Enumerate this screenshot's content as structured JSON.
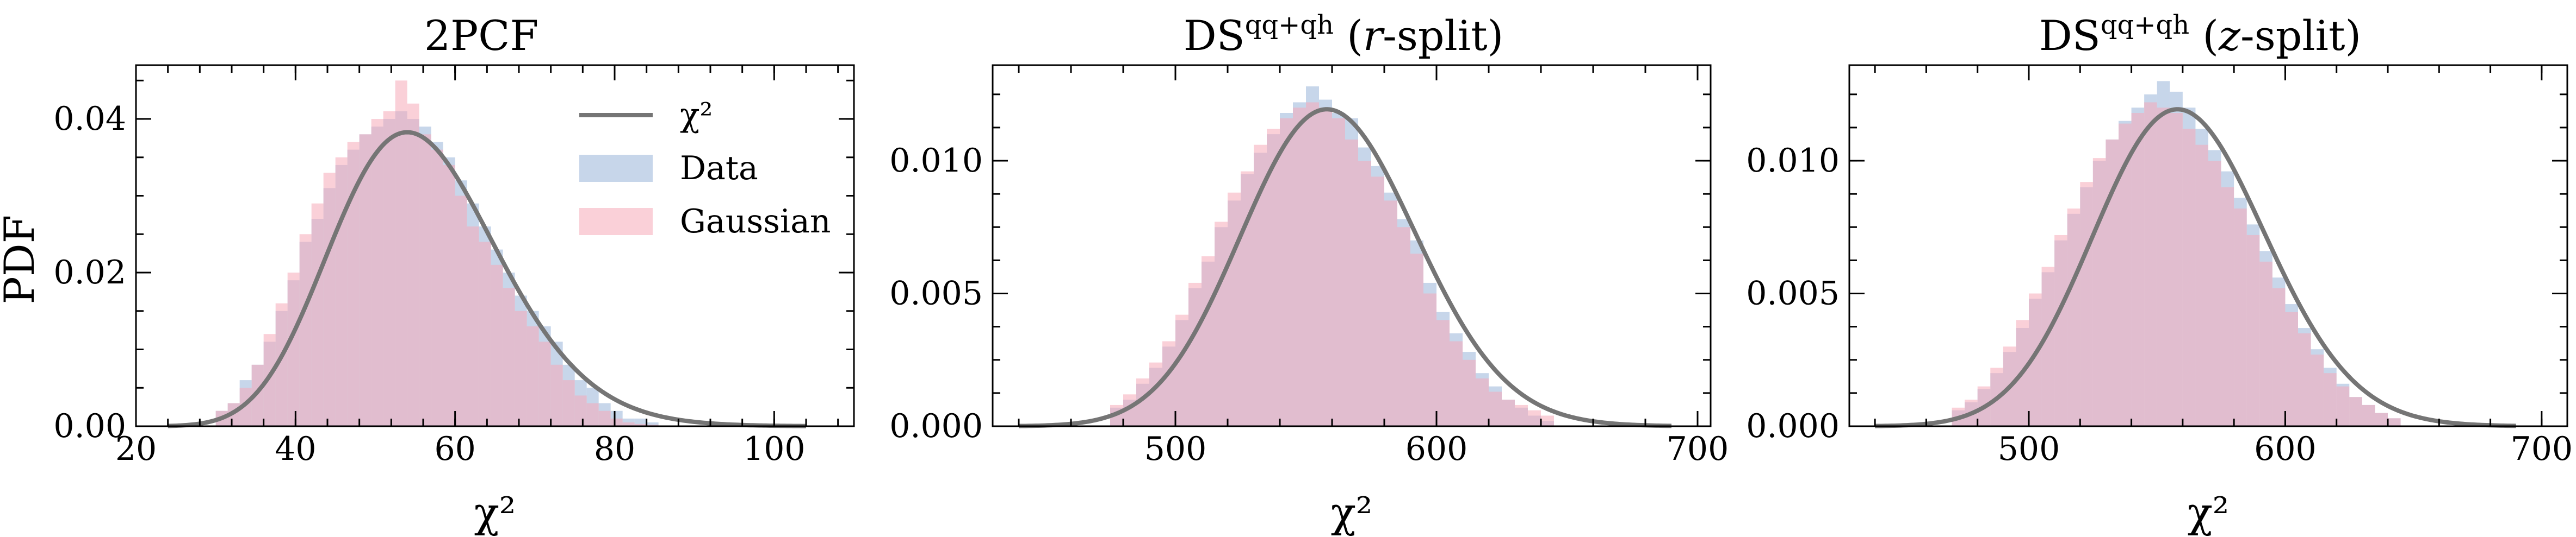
{
  "colors": {
    "data": "#a9c0de",
    "gaussian": "#f5aab8",
    "chi2_line": "#757575"
  },
  "legend": {
    "chi2": "χ²",
    "data": "Data",
    "gaussian": "Gaussian"
  },
  "chart_data": [
    {
      "type": "histogram",
      "title": "2PCF",
      "xlabel": "χ²",
      "ylabel": "PDF",
      "xlim": [
        20,
        110
      ],
      "ylim": [
        0,
        0.047
      ],
      "xticks": [
        20,
        40,
        60,
        80,
        100
      ],
      "xtick_labels": [
        "20",
        "40",
        "60",
        "80",
        "100"
      ],
      "yticks": [
        0,
        0.02,
        0.04
      ],
      "ytick_labels": [
        "0.00",
        "0.02",
        "0.04"
      ],
      "bin_start": 30,
      "bin_width": 1.5,
      "data_values": [
        0.002,
        0.003,
        0.006,
        0.008,
        0.011,
        0.015,
        0.019,
        0.024,
        0.027,
        0.031,
        0.034,
        0.036,
        0.038,
        0.039,
        0.04,
        0.041,
        0.04,
        0.039,
        0.037,
        0.035,
        0.032,
        0.029,
        0.026,
        0.023,
        0.02,
        0.017,
        0.015,
        0.013,
        0.011,
        0.008,
        0.006,
        0.005,
        0.003,
        0.002,
        0.001,
        0.001,
        0.0005
      ],
      "gaussian_values": [
        0.002,
        0.003,
        0.005,
        0.008,
        0.012,
        0.016,
        0.02,
        0.025,
        0.029,
        0.033,
        0.035,
        0.037,
        0.038,
        0.04,
        0.041,
        0.045,
        0.042,
        0.038,
        0.036,
        0.034,
        0.03,
        0.026,
        0.024,
        0.021,
        0.018,
        0.015,
        0.013,
        0.011,
        0.008,
        0.006,
        0.004,
        0.003,
        0.002,
        0.001,
        0.0005,
        0.0003,
        0.0002
      ],
      "chi2_curve": {
        "dof": 56,
        "xmin": 24,
        "xmax": 104
      },
      "legend_position": "top-right"
    },
    {
      "type": "histogram",
      "title_main": "DS",
      "title_sup": "qq+qh",
      "title_var": "r",
      "title_rest": "-split)",
      "title_open": " (",
      "xlabel": "χ²",
      "ylabel": "",
      "xlim": [
        430,
        705
      ],
      "ylim": [
        0,
        0.0136
      ],
      "xticks": [
        500,
        600,
        700
      ],
      "xtick_labels": [
        "500",
        "600",
        "700"
      ],
      "yticks": [
        0,
        0.005,
        0.01
      ],
      "ytick_labels": [
        "0.000",
        "0.005",
        "0.010"
      ],
      "bin_start": 475,
      "bin_width": 5,
      "data_values": [
        0.0007,
        0.001,
        0.0016,
        0.0022,
        0.003,
        0.004,
        0.0052,
        0.0062,
        0.0075,
        0.0085,
        0.0095,
        0.0103,
        0.011,
        0.0118,
        0.0122,
        0.0128,
        0.0123,
        0.0118,
        0.0116,
        0.0105,
        0.0098,
        0.0088,
        0.0078,
        0.007,
        0.0054,
        0.0043,
        0.0035,
        0.0028,
        0.002,
        0.0015,
        0.001,
        0.0007,
        0.0004,
        0.0002
      ],
      "gaussian_values": [
        0.0008,
        0.0012,
        0.0018,
        0.0024,
        0.0032,
        0.0042,
        0.0054,
        0.0064,
        0.0077,
        0.0088,
        0.0096,
        0.0106,
        0.0112,
        0.0116,
        0.012,
        0.0122,
        0.012,
        0.0116,
        0.0108,
        0.01,
        0.0094,
        0.0085,
        0.0075,
        0.0065,
        0.005,
        0.004,
        0.0032,
        0.0025,
        0.0018,
        0.0013,
        0.001,
        0.0008,
        0.0006,
        0.0004
      ],
      "chi2_curve": {
        "dof": 560,
        "xmin": 440,
        "xmax": 690
      }
    },
    {
      "type": "histogram",
      "title_main": "DS",
      "title_sup": "qq+qh",
      "title_var": "z",
      "title_rest": "-split)",
      "title_open": " (",
      "xlabel": "χ²",
      "ylabel": "",
      "xlim": [
        430,
        710
      ],
      "ylim": [
        0,
        0.0136
      ],
      "xticks": [
        500,
        600,
        700
      ],
      "xtick_labels": [
        "500",
        "600",
        "700"
      ],
      "yticks": [
        0,
        0.005,
        0.01
      ],
      "ytick_labels": [
        "0.000",
        "0.005",
        "0.010"
      ],
      "bin_start": 470,
      "bin_width": 5,
      "data_values": [
        0.0006,
        0.0009,
        0.0014,
        0.002,
        0.0028,
        0.0037,
        0.0048,
        0.0058,
        0.007,
        0.008,
        0.009,
        0.01,
        0.0108,
        0.0115,
        0.012,
        0.0125,
        0.013,
        0.0126,
        0.012,
        0.0112,
        0.0104,
        0.0096,
        0.0086,
        0.0076,
        0.0066,
        0.0056,
        0.0046,
        0.0037,
        0.0029,
        0.0022,
        0.0016,
        0.0011,
        0.0008,
        0.0005,
        0.0003
      ],
      "gaussian_values": [
        0.0007,
        0.001,
        0.0015,
        0.0022,
        0.003,
        0.004,
        0.005,
        0.006,
        0.0072,
        0.0082,
        0.0092,
        0.0101,
        0.0108,
        0.0114,
        0.0118,
        0.0122,
        0.012,
        0.0118,
        0.0112,
        0.0106,
        0.01,
        0.009,
        0.0082,
        0.0072,
        0.0062,
        0.0052,
        0.0043,
        0.0035,
        0.0027,
        0.002,
        0.0015,
        0.0011,
        0.0008,
        0.0005,
        0.0003
      ],
      "chi2_curve": {
        "dof": 560,
        "xmin": 440,
        "xmax": 690
      }
    }
  ]
}
